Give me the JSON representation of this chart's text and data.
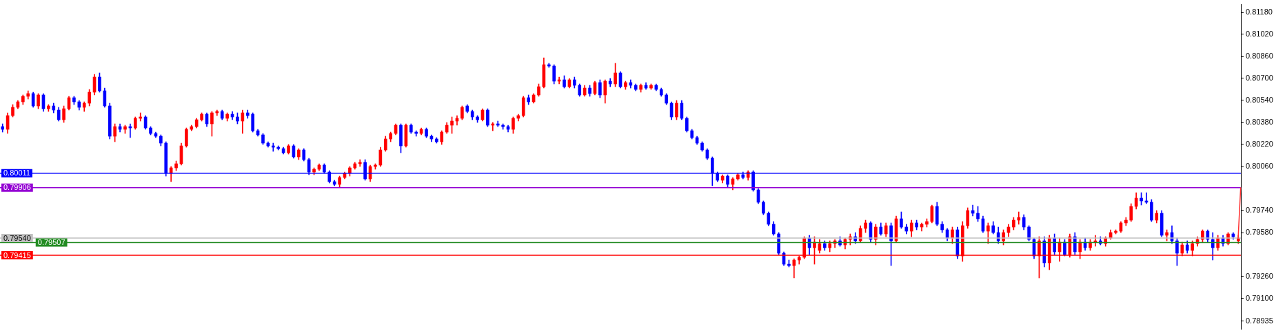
{
  "chart_data": {
    "type": "candlestick",
    "categories": [
      null,
      null,
      null,
      null,
      null,
      null,
      null,
      null,
      null,
      null,
      null,
      null,
      null,
      null,
      null,
      null,
      null,
      null,
      null,
      null,
      null,
      null,
      null,
      null,
      null,
      null,
      null,
      null,
      null,
      null,
      null,
      null,
      null,
      null,
      null,
      null,
      null,
      null,
      null,
      null,
      null,
      null,
      null,
      null,
      null,
      null,
      null,
      null,
      null,
      null,
      null,
      null,
      null,
      null,
      null,
      null,
      null,
      null,
      null,
      null,
      null,
      null,
      null,
      null,
      null,
      null,
      null,
      null,
      null,
      null,
      null,
      null,
      null,
      null,
      null,
      null,
      null,
      null,
      null,
      null,
      null,
      null,
      null,
      null,
      null,
      null,
      null,
      null,
      null,
      null,
      null,
      null,
      null,
      null,
      null,
      null,
      null,
      null,
      null,
      null,
      null,
      null,
      null,
      null,
      null,
      null,
      null,
      null,
      null,
      null,
      null,
      null,
      null,
      null,
      null,
      null,
      null,
      null,
      null,
      null,
      null,
      null,
      null,
      null,
      null,
      null,
      null,
      null,
      null,
      null,
      null,
      null,
      null,
      null,
      null,
      null,
      null,
      null,
      null,
      null,
      null,
      null,
      null,
      null,
      null,
      null,
      null,
      null,
      null,
      null,
      null,
      null,
      null,
      null,
      null,
      null,
      null,
      null,
      null,
      null,
      null,
      null,
      null,
      null,
      null,
      null,
      null,
      null,
      null,
      null,
      null,
      null,
      null,
      null,
      null,
      null,
      null,
      null,
      null,
      null,
      null,
      null,
      null,
      null,
      null,
      null,
      null,
      null,
      null,
      null,
      null,
      null,
      null,
      null,
      null,
      null,
      null,
      null,
      null,
      null,
      null,
      null,
      null,
      null,
      null,
      null,
      null,
      null,
      null,
      null,
      null,
      null,
      null,
      null,
      null,
      null,
      null,
      null,
      null,
      null,
      null,
      null,
      null,
      null,
      null,
      null,
      null,
      null,
      null,
      null,
      null,
      null,
      null,
      null,
      null,
      null,
      null,
      null,
      null,
      null,
      null,
      null,
      null
    ],
    "colors": [
      "#0000ff",
      "#ff0000",
      "#ff0000",
      "#ff0000",
      "#ff0000",
      "#ff0000",
      "#0000ff",
      "#ff0000",
      "#0000ff",
      "#ff0000",
      "#0000ff",
      "#0000ff",
      "#ff0000",
      "#ff0000",
      "#0000ff",
      "#0000ff",
      "#ff0000",
      "#ff0000",
      "#ff0000",
      "#0000ff",
      "#0000ff",
      "#0000ff",
      "#ff0000",
      "#0000ff",
      "#ff0000",
      "#0000ff",
      "#ff0000",
      "#ff0000",
      "#0000ff",
      "#0000ff",
      "#0000ff",
      "#0000ff",
      "#0000ff",
      "#ff0000",
      "#ff0000",
      "#ff0000",
      "#ff0000",
      "#ff0000",
      "#ff0000",
      "#ff0000",
      "#0000ff",
      "#ff0000",
      "#ff0000",
      "#0000ff",
      "#ff0000",
      "#0000ff",
      "#0000ff",
      "#ff0000",
      "#0000ff",
      "#0000ff",
      "#0000ff",
      "#0000ff",
      "#0000ff",
      "#0000ff",
      "#0000ff",
      "#0000ff",
      "#ff0000",
      "#0000ff",
      "#ff0000",
      "#0000ff",
      "#0000ff",
      "#ff0000",
      "#ff0000",
      "#0000ff",
      "#0000ff",
      "#0000ff",
      "#ff0000",
      "#ff0000",
      "#ff0000",
      "#ff0000",
      "#ff0000",
      "#0000ff",
      "#ff0000",
      "#ff0000",
      "#ff0000",
      "#ff0000",
      "#ff0000",
      "#ff0000",
      "#0000ff",
      "#ff0000",
      "#0000ff",
      "#0000ff",
      "#ff0000",
      "#0000ff",
      "#0000ff",
      "#0000ff",
      "#ff0000",
      "#ff0000",
      "#ff0000",
      "#ff0000",
      "#ff0000",
      "#0000ff",
      "#0000ff",
      "#0000ff",
      "#ff0000",
      "#0000ff",
      "#ff0000",
      "#0000ff",
      "#0000ff",
      "#0000ff",
      "#ff0000",
      "#ff0000",
      "#ff0000",
      "#0000ff",
      "#ff0000",
      "#ff0000",
      "#ff0000",
      "#0000ff",
      "#0000ff",
      "#ff0000",
      "#0000ff",
      "#ff0000",
      "#0000ff",
      "#0000ff",
      "#ff0000",
      "#0000ff",
      "#ff0000",
      "#0000ff",
      "#ff0000",
      "#0000ff",
      "#ff0000",
      "#0000ff",
      "#ff0000",
      "#0000ff",
      "#0000ff",
      "#ff0000",
      "#0000ff",
      "#ff0000",
      "#0000ff",
      "#0000ff",
      "#0000ff",
      "#0000ff",
      "#ff0000",
      "#0000ff",
      "#0000ff",
      "#0000ff",
      "#0000ff",
      "#0000ff",
      "#0000ff",
      "#0000ff",
      "#0000ff",
      "#ff0000",
      "#0000ff",
      "#ff0000",
      "#ff0000",
      "#0000ff",
      "#ff0000",
      "#0000ff",
      "#0000ff",
      "#0000ff",
      "#0000ff",
      "#0000ff",
      "#0000ff",
      "#0000ff",
      "#0000ff",
      "#ff0000",
      "#ff0000",
      "#ff0000",
      "#0000ff",
      "#ff0000",
      "#ff0000",
      "#0000ff",
      "#ff0000",
      "#ff0000",
      "#0000ff",
      "#ff0000",
      "#ff0000",
      "#0000ff",
      "#ff0000",
      "#ff0000",
      "#0000ff",
      "#ff0000",
      "#0000ff",
      "#ff0000",
      "#0000ff",
      "#ff0000",
      "#0000ff",
      "#0000ff",
      "#ff0000",
      "#0000ff",
      "#ff0000",
      "#ff0000",
      "#ff0000",
      "#0000ff",
      "#0000ff",
      "#0000ff",
      "#ff0000",
      "#0000ff",
      "#ff0000",
      "#ff0000",
      "#0000ff",
      "#0000ff",
      "#0000ff",
      "#ff0000",
      "#0000ff",
      "#0000ff",
      "#ff0000",
      "#ff0000",
      "#ff0000",
      "#ff0000",
      "#0000ff",
      "#0000ff",
      "#0000ff",
      "#ff0000",
      "#0000ff",
      "#ff0000",
      "#0000ff",
      "#ff0000",
      "#0000ff",
      "#ff0000",
      "#0000ff",
      "#ff0000",
      "#0000ff",
      "#ff0000",
      "#ff0000",
      "#0000ff",
      "#ff0000",
      "#ff0000",
      "#ff0000",
      "#ff0000",
      "#ff0000",
      "#ff0000",
      "#ff0000",
      "#0000ff",
      "#0000ff",
      "#0000ff",
      "#ff0000",
      "#0000ff",
      "#ff0000",
      "#0000ff",
      "#0000ff",
      "#ff0000",
      "#0000ff",
      "#ff0000",
      "#ff0000",
      "#ff0000",
      "#0000ff",
      "#0000ff",
      "#ff0000",
      "#0000ff",
      "#ff0000",
      "#0000ff",
      "#ff0000"
    ],
    "ohlc": [
      [
        0.8035,
        0.8037,
        0.8031,
        0.8033
      ],
      [
        0.8033,
        0.8045,
        0.803,
        0.8043
      ],
      [
        0.8043,
        0.8051,
        0.8042,
        0.8049
      ],
      [
        0.8049,
        0.8054,
        0.8048,
        0.8053
      ],
      [
        0.8053,
        0.8058,
        0.8051,
        0.8057
      ],
      [
        0.8057,
        0.8061,
        0.8055,
        0.8059
      ],
      [
        0.8059,
        0.806,
        0.8049,
        0.805
      ],
      [
        0.805,
        0.8059,
        0.8048,
        0.8058
      ],
      [
        0.8058,
        0.8059,
        0.8046,
        0.8048
      ],
      [
        0.8048,
        0.8051,
        0.8046,
        0.805
      ],
      [
        0.805,
        0.8052,
        0.8045,
        0.8047
      ],
      [
        0.8047,
        0.8049,
        0.8039,
        0.804
      ],
      [
        0.804,
        0.805,
        0.8038,
        0.8048
      ],
      [
        0.8048,
        0.8057,
        0.8047,
        0.8056
      ],
      [
        0.8056,
        0.8057,
        0.8051,
        0.8053
      ],
      [
        0.8053,
        0.8054,
        0.8047,
        0.8049
      ],
      [
        0.8049,
        0.8053,
        0.8046,
        0.8052
      ],
      [
        0.8052,
        0.8062,
        0.805,
        0.806
      ],
      [
        0.806,
        0.8073,
        0.8058,
        0.8071
      ],
      [
        0.8071,
        0.8074,
        0.806,
        0.8061
      ],
      [
        0.8061,
        0.8063,
        0.8049,
        0.805
      ],
      [
        0.805,
        0.8052,
        0.8026,
        0.8028
      ],
      [
        0.8028,
        0.8037,
        0.8024,
        0.8035
      ],
      [
        0.8035,
        0.8037,
        0.8031,
        0.8033
      ],
      [
        0.8033,
        0.8036,
        0.803,
        0.8035
      ],
      [
        0.8035,
        0.8037,
        0.8027,
        0.8034
      ],
      [
        0.8034,
        0.8042,
        0.8033,
        0.8041
      ],
      [
        0.8041,
        0.8045,
        0.8039,
        0.8042
      ],
      [
        0.8042,
        0.8043,
        0.8033,
        0.8034
      ],
      [
        0.8034,
        0.8035,
        0.8029,
        0.803
      ],
      [
        0.803,
        0.8031,
        0.8027,
        0.8028
      ],
      [
        0.8028,
        0.8029,
        0.8021,
        0.8023
      ],
      [
        0.8023,
        0.8024,
        0.7999,
        0.8001
      ],
      [
        0.8001,
        0.8006,
        0.7995,
        0.8005
      ],
      [
        0.8005,
        0.801,
        0.8003,
        0.8008
      ],
      [
        0.8008,
        0.8023,
        0.8007,
        0.8021
      ],
      [
        0.8021,
        0.8034,
        0.802,
        0.8033
      ],
      [
        0.8033,
        0.8036,
        0.8032,
        0.8035
      ],
      [
        0.8035,
        0.8041,
        0.8034,
        0.804
      ],
      [
        0.804,
        0.8045,
        0.8039,
        0.8044
      ],
      [
        0.8044,
        0.8045,
        0.8035,
        0.8037
      ],
      [
        0.8037,
        0.8046,
        0.8028,
        0.8045
      ],
      [
        0.8045,
        0.8047,
        0.8043,
        0.8046
      ],
      [
        0.8046,
        0.8047,
        0.804,
        0.8041
      ],
      [
        0.8041,
        0.8045,
        0.8039,
        0.8044
      ],
      [
        0.8044,
        0.8046,
        0.804,
        0.8042
      ],
      [
        0.8042,
        0.8045,
        0.8037,
        0.8039
      ],
      [
        0.8039,
        0.8047,
        0.803,
        0.8045
      ],
      [
        0.8045,
        0.8047,
        0.8041,
        0.8043
      ],
      [
        0.8044,
        0.8045,
        0.8031,
        0.8032
      ],
      [
        0.8032,
        0.8033,
        0.8028,
        0.8029
      ],
      [
        0.8029,
        0.803,
        0.8022,
        0.8023
      ],
      [
        0.8023,
        0.8024,
        0.802,
        0.8021
      ],
      [
        0.8021,
        0.8023,
        0.8017,
        0.802
      ],
      [
        0.802,
        0.8021,
        0.8018,
        0.8019
      ],
      [
        0.8019,
        0.802,
        0.8015,
        0.8016
      ],
      [
        0.8016,
        0.8022,
        0.8015,
        0.8021
      ],
      [
        0.8021,
        0.8022,
        0.8012,
        0.8013
      ],
      [
        0.8013,
        0.8019,
        0.8011,
        0.8018
      ],
      [
        0.8018,
        0.8019,
        0.801,
        0.8011
      ],
      [
        0.8011,
        0.8012,
        0.8,
        0.8002
      ],
      [
        0.8002,
        0.8005,
        0.8,
        0.8004
      ],
      [
        0.8004,
        0.8008,
        0.8003,
        0.8007
      ],
      [
        0.8007,
        0.8008,
        0.8001,
        0.8002
      ],
      [
        0.8002,
        0.8003,
        0.7994,
        0.7995
      ],
      [
        0.7995,
        0.7996,
        0.7992,
        0.7993
      ],
      [
        0.7993,
        0.7999,
        0.7991,
        0.7998
      ],
      [
        0.7998,
        0.8002,
        0.7997,
        0.8001
      ],
      [
        0.8001,
        0.8006,
        0.7999,
        0.8005
      ],
      [
        0.8005,
        0.8009,
        0.8004,
        0.8008
      ],
      [
        0.8008,
        0.8011,
        0.8006,
        0.8009
      ],
      [
        0.8009,
        0.8011,
        0.7996,
        0.7997
      ],
      [
        0.7997,
        0.8007,
        0.7995,
        0.8006
      ],
      [
        0.8006,
        0.8008,
        0.8004,
        0.8007
      ],
      [
        0.8007,
        0.802,
        0.8006,
        0.8018
      ],
      [
        0.8018,
        0.8028,
        0.8017,
        0.8026
      ],
      [
        0.8026,
        0.8031,
        0.8024,
        0.803
      ],
      [
        0.803,
        0.8037,
        0.8029,
        0.8036
      ],
      [
        0.8036,
        0.8037,
        0.8016,
        0.8021
      ],
      [
        0.8021,
        0.8037,
        0.802,
        0.8036
      ],
      [
        0.8036,
        0.8037,
        0.803,
        0.8031
      ],
      [
        0.8031,
        0.8032,
        0.8028,
        0.803
      ],
      [
        0.803,
        0.8034,
        0.8029,
        0.8033
      ],
      [
        0.8033,
        0.8034,
        0.8027,
        0.8028
      ],
      [
        0.8028,
        0.8029,
        0.8024,
        0.8026
      ],
      [
        0.8026,
        0.8027,
        0.8023,
        0.8024
      ],
      [
        0.8024,
        0.8032,
        0.8022,
        0.8031
      ],
      [
        0.8031,
        0.8038,
        0.803,
        0.8036
      ],
      [
        0.8036,
        0.8042,
        0.803,
        0.8039
      ],
      [
        0.8039,
        0.8043,
        0.8036,
        0.8041
      ],
      [
        0.8041,
        0.805,
        0.804,
        0.8049
      ],
      [
        0.805,
        0.8051,
        0.8045,
        0.8046
      ],
      [
        0.8046,
        0.8047,
        0.804,
        0.8042
      ],
      [
        0.8042,
        0.8043,
        0.8038,
        0.804
      ],
      [
        0.804,
        0.8048,
        0.8039,
        0.8047
      ],
      [
        0.8047,
        0.8048,
        0.8035,
        0.8036
      ],
      [
        0.8036,
        0.8038,
        0.8032,
        0.8037
      ],
      [
        0.8037,
        0.8039,
        0.8035,
        0.8036
      ],
      [
        0.8036,
        0.8037,
        0.8033,
        0.8035
      ],
      [
        0.8035,
        0.8036,
        0.8031,
        0.8033
      ],
      [
        0.8033,
        0.8042,
        0.803,
        0.8041
      ],
      [
        0.8041,
        0.8044,
        0.8039,
        0.8043
      ],
      [
        0.8043,
        0.8057,
        0.8042,
        0.8056
      ],
      [
        0.8056,
        0.8058,
        0.8051,
        0.8053
      ],
      [
        0.8053,
        0.8059,
        0.8052,
        0.8058
      ],
      [
        0.8058,
        0.8066,
        0.8057,
        0.8064
      ],
      [
        0.8064,
        0.8085,
        0.8063,
        0.808
      ],
      [
        0.808,
        0.8081,
        0.8078,
        0.8079
      ],
      [
        0.8079,
        0.808,
        0.8066,
        0.8068
      ],
      [
        0.8068,
        0.8071,
        0.8066,
        0.8069
      ],
      [
        0.8069,
        0.8072,
        0.8063,
        0.8064
      ],
      [
        0.8064,
        0.807,
        0.8063,
        0.8069
      ],
      [
        0.8069,
        0.8071,
        0.8063,
        0.8065
      ],
      [
        0.8065,
        0.8066,
        0.8057,
        0.8058
      ],
      [
        0.8058,
        0.8065,
        0.8057,
        0.8063
      ],
      [
        0.8063,
        0.8065,
        0.8057,
        0.8059
      ],
      [
        0.8059,
        0.8068,
        0.8058,
        0.8067
      ],
      [
        0.8067,
        0.8069,
        0.8056,
        0.8058
      ],
      [
        0.8058,
        0.8069,
        0.8052,
        0.8068
      ],
      [
        0.8068,
        0.807,
        0.8064,
        0.8066
      ],
      [
        0.8066,
        0.8081,
        0.8064,
        0.8074
      ],
      [
        0.8074,
        0.8075,
        0.8063,
        0.8064
      ],
      [
        0.8064,
        0.8068,
        0.8062,
        0.8067
      ],
      [
        0.8067,
        0.8069,
        0.8063,
        0.8065
      ],
      [
        0.8065,
        0.8066,
        0.8061,
        0.8062
      ],
      [
        0.8062,
        0.8066,
        0.806,
        0.8065
      ],
      [
        0.8065,
        0.8067,
        0.8062,
        0.8063
      ],
      [
        0.8063,
        0.8066,
        0.8062,
        0.8065
      ],
      [
        0.8065,
        0.8066,
        0.8061,
        0.8062
      ],
      [
        0.8062,
        0.8063,
        0.8057,
        0.8058
      ],
      [
        0.8058,
        0.8059,
        0.8051,
        0.8052
      ],
      [
        0.8052,
        0.8053,
        0.804,
        0.8042
      ],
      [
        0.8042,
        0.8054,
        0.804,
        0.8052
      ],
      [
        0.8052,
        0.8054,
        0.804,
        0.8041
      ],
      [
        0.8041,
        0.8042,
        0.8031,
        0.8032
      ],
      [
        0.8032,
        0.8033,
        0.8026,
        0.8027
      ],
      [
        0.8027,
        0.8028,
        0.8022,
        0.8023
      ],
      [
        0.8023,
        0.8024,
        0.8017,
        0.8018
      ],
      [
        0.8018,
        0.8019,
        0.8011,
        0.8012
      ],
      [
        0.8012,
        0.8013,
        0.7992,
        0.8001
      ],
      [
        0.8001,
        0.8002,
        0.7995,
        0.7996
      ],
      [
        0.7996,
        0.8,
        0.7994,
        0.7999
      ],
      [
        0.7999,
        0.8,
        0.7991,
        0.7993
      ],
      [
        0.7993,
        0.7998,
        0.7989,
        0.7997
      ],
      [
        0.7997,
        0.8001,
        0.7996,
        0.8
      ],
      [
        0.8,
        0.8002,
        0.7997,
        0.7998
      ],
      [
        0.7998,
        0.8003,
        0.7996,
        0.8002
      ],
      [
        0.8002,
        0.8003,
        0.7988,
        0.7989
      ],
      [
        0.7989,
        0.799,
        0.7979,
        0.798
      ],
      [
        0.798,
        0.7981,
        0.7971,
        0.7972
      ],
      [
        0.7972,
        0.7973,
        0.7963,
        0.7964
      ],
      [
        0.7964,
        0.7966,
        0.7956,
        0.7957
      ],
      [
        0.7957,
        0.7958,
        0.7942,
        0.7943
      ],
      [
        0.7943,
        0.7944,
        0.7934,
        0.7935
      ],
      [
        0.7935,
        0.7938,
        0.7933,
        0.7934
      ],
      [
        0.7934,
        0.7939,
        0.7925,
        0.7938
      ],
      [
        0.7938,
        0.7941,
        0.7935,
        0.794
      ],
      [
        0.794,
        0.7955,
        0.7939,
        0.7954
      ],
      [
        0.7954,
        0.7956,
        0.7942,
        0.7947
      ],
      [
        0.7947,
        0.7955,
        0.7935,
        0.7951
      ],
      [
        0.7945,
        0.7953,
        0.7943,
        0.795
      ],
      [
        0.795,
        0.7952,
        0.7945,
        0.7947
      ],
      [
        0.7947,
        0.7952,
        0.7944,
        0.795
      ],
      [
        0.795,
        0.7953,
        0.7947,
        0.7952
      ],
      [
        0.7952,
        0.7955,
        0.7948,
        0.7949
      ],
      [
        0.7949,
        0.7954,
        0.7946,
        0.7953
      ],
      [
        0.7953,
        0.7957,
        0.7949,
        0.7955
      ],
      [
        0.7955,
        0.7958,
        0.795,
        0.7952
      ],
      [
        0.7952,
        0.7963,
        0.7951,
        0.7961
      ],
      [
        0.7961,
        0.7967,
        0.7958,
        0.7965
      ],
      [
        0.7965,
        0.7966,
        0.7951,
        0.7953
      ],
      [
        0.7953,
        0.7964,
        0.7949,
        0.7962
      ],
      [
        0.7962,
        0.7965,
        0.7956,
        0.7957
      ],
      [
        0.7957,
        0.7965,
        0.7955,
        0.7963
      ],
      [
        0.7963,
        0.7965,
        0.7934,
        0.7952
      ],
      [
        0.7952,
        0.797,
        0.7951,
        0.7968
      ],
      [
        0.7968,
        0.7973,
        0.7961,
        0.7962
      ],
      [
        0.7962,
        0.7964,
        0.7957,
        0.7959
      ],
      [
        0.7959,
        0.7967,
        0.7955,
        0.7965
      ],
      [
        0.7965,
        0.7967,
        0.796,
        0.7962
      ],
      [
        0.7962,
        0.7965,
        0.7959,
        0.7964
      ],
      [
        0.7964,
        0.7968,
        0.7962,
        0.7966
      ],
      [
        0.7966,
        0.7978,
        0.7965,
        0.7977
      ],
      [
        0.7977,
        0.798,
        0.7963,
        0.7964
      ],
      [
        0.7964,
        0.7966,
        0.7958,
        0.796
      ],
      [
        0.796,
        0.7961,
        0.7952,
        0.7954
      ],
      [
        0.7954,
        0.7962,
        0.795,
        0.796
      ],
      [
        0.796,
        0.7962,
        0.7939,
        0.7941
      ],
      [
        0.7941,
        0.7966,
        0.7937,
        0.7963
      ],
      [
        0.7963,
        0.7976,
        0.7961,
        0.7974
      ],
      [
        0.7974,
        0.7978,
        0.797,
        0.7972
      ],
      [
        0.7972,
        0.7977,
        0.7966,
        0.7968
      ],
      [
        0.7968,
        0.797,
        0.7958,
        0.7959
      ],
      [
        0.7959,
        0.7965,
        0.795,
        0.7963
      ],
      [
        0.7963,
        0.7966,
        0.7957,
        0.7958
      ],
      [
        0.7958,
        0.7962,
        0.795,
        0.7952
      ],
      [
        0.7952,
        0.796,
        0.7949,
        0.7958
      ],
      [
        0.7958,
        0.7964,
        0.7955,
        0.7962
      ],
      [
        0.7962,
        0.7969,
        0.796,
        0.7967
      ],
      [
        0.7967,
        0.7973,
        0.7964,
        0.7969
      ],
      [
        0.7969,
        0.7971,
        0.796,
        0.7962
      ],
      [
        0.7962,
        0.7963,
        0.7952,
        0.7953
      ],
      [
        0.7953,
        0.7954,
        0.7939,
        0.7941
      ],
      [
        0.7941,
        0.7955,
        0.7925,
        0.7952
      ],
      [
        0.7952,
        0.7955,
        0.7933,
        0.7936
      ],
      [
        0.7936,
        0.7956,
        0.7931,
        0.7954
      ],
      [
        0.7954,
        0.7957,
        0.7942,
        0.7944
      ],
      [
        0.7944,
        0.7954,
        0.7937,
        0.7951
      ],
      [
        0.7951,
        0.7953,
        0.7941,
        0.7942
      ],
      [
        0.7942,
        0.7957,
        0.794,
        0.7955
      ],
      [
        0.7955,
        0.7958,
        0.7942,
        0.7944
      ],
      [
        0.7944,
        0.7953,
        0.7939,
        0.7951
      ],
      [
        0.7951,
        0.7954,
        0.7945,
        0.7947
      ],
      [
        0.7947,
        0.7953,
        0.7945,
        0.7951
      ],
      [
        0.7951,
        0.7956,
        0.7948,
        0.7952
      ],
      [
        0.7952,
        0.7955,
        0.7949,
        0.795
      ],
      [
        0.795,
        0.7955,
        0.7948,
        0.7954
      ],
      [
        0.7954,
        0.796,
        0.7953,
        0.7958
      ],
      [
        0.7958,
        0.796,
        0.7957,
        0.7959
      ],
      [
        0.7959,
        0.7966,
        0.7958,
        0.7965
      ],
      [
        0.7965,
        0.7969,
        0.7963,
        0.7967
      ],
      [
        0.7967,
        0.7979,
        0.7966,
        0.7977
      ],
      [
        0.7977,
        0.7987,
        0.7975,
        0.7983
      ],
      [
        0.7983,
        0.7987,
        0.7978,
        0.7981
      ],
      [
        0.7981,
        0.7987,
        0.7979,
        0.798
      ],
      [
        0.798,
        0.7982,
        0.7966,
        0.7967
      ],
      [
        0.7967,
        0.7974,
        0.7965,
        0.7972
      ],
      [
        0.7972,
        0.7974,
        0.7955,
        0.7956
      ],
      [
        0.7956,
        0.796,
        0.7952,
        0.7958
      ],
      [
        0.7958,
        0.7963,
        0.795,
        0.7952
      ],
      [
        0.7952,
        0.7954,
        0.7934,
        0.7943
      ],
      [
        0.7943,
        0.7951,
        0.7941,
        0.7949
      ],
      [
        0.7949,
        0.7952,
        0.7943,
        0.7945
      ],
      [
        0.7945,
        0.7952,
        0.7941,
        0.795
      ],
      [
        0.795,
        0.7955,
        0.7948,
        0.7953
      ],
      [
        0.7953,
        0.796,
        0.7951,
        0.7959
      ],
      [
        0.7959,
        0.796,
        0.7951,
        0.7953
      ],
      [
        0.7953,
        0.7958,
        0.7938,
        0.7947
      ],
      [
        0.7947,
        0.7956,
        0.7945,
        0.7954
      ],
      [
        0.7954,
        0.7956,
        0.7948,
        0.795
      ],
      [
        0.795,
        0.7958,
        0.7949,
        0.7957
      ],
      [
        0.7957,
        0.7958,
        0.7953,
        0.7955
      ],
      [
        0.7952,
        0.7956,
        0.795,
        0.7954
      ]
    ],
    "ylim": [
      0.7888,
      0.8124
    ],
    "yticks": [
      {
        "value": 0.8118,
        "label": "0.81180"
      },
      {
        "value": 0.8102,
        "label": "0.81020"
      },
      {
        "value": 0.8086,
        "label": "0.80860"
      },
      {
        "value": 0.807,
        "label": "0.80700"
      },
      {
        "value": 0.8054,
        "label": "0.80540"
      },
      {
        "value": 0.8038,
        "label": "0.80380"
      },
      {
        "value": 0.8022,
        "label": "0.80220"
      },
      {
        "value": 0.8006,
        "label": "0.80060"
      },
      {
        "value": 0.7974,
        "label": "0.79740"
      },
      {
        "value": 0.7958,
        "label": "0.79580"
      },
      {
        "value": 0.7926,
        "label": "0.79260"
      },
      {
        "value": 0.791,
        "label": "0.79100"
      },
      {
        "value": 0.78935,
        "label": "0.78935"
      }
    ],
    "ref_lines": [
      {
        "axis": "y",
        "value": 0.80011,
        "label": "0.80011",
        "color": "#0000ff"
      },
      {
        "axis": "y",
        "value": 0.79906,
        "label": "0.79906",
        "color": "#9400d3"
      },
      {
        "axis": "y",
        "value": 0.7954,
        "label": "0.79540",
        "color": "#c0c0c0"
      },
      {
        "axis": "y",
        "value": 0.79507,
        "label": "0.79507",
        "color": "#228b22"
      },
      {
        "axis": "y",
        "value": 0.79415,
        "label": "0.79415",
        "color": "#ff0000"
      }
    ],
    "grid": false,
    "legend": false,
    "tick_labels": "y"
  }
}
